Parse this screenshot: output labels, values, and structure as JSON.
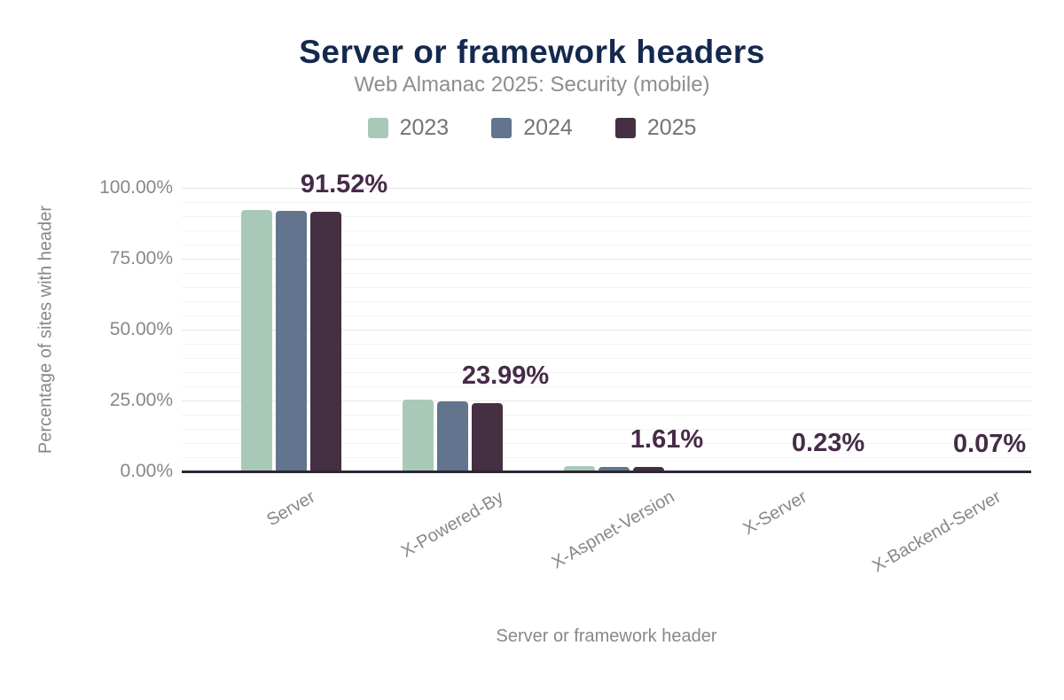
{
  "chart": {
    "title": "Server or framework headers",
    "subtitle": "Web Almanac 2025: Security (mobile)",
    "xlabel": "Server or framework header",
    "ylabel": "Percentage of sites with header"
  },
  "chart_data": {
    "type": "bar",
    "title": "Server or framework headers",
    "subtitle": "Web Almanac 2025: Security (mobile)",
    "xlabel": "Server or framework header",
    "ylabel": "Percentage of sites with header",
    "categories": [
      "Server",
      "X-Powered-By",
      "X-Aspnet-Version",
      "X-Server",
      "X-Backend-Server"
    ],
    "series": [
      {
        "name": "2023",
        "color": "#a9c9b8",
        "values": [
          92.3,
          25.2,
          1.9,
          0.3,
          0.1
        ]
      },
      {
        "name": "2024",
        "color": "#63748f",
        "values": [
          91.9,
          24.6,
          1.65,
          0.26,
          0.08
        ]
      },
      {
        "name": "2025",
        "color": "#452f42",
        "values": [
          91.52,
          23.99,
          1.61,
          0.23,
          0.07
        ]
      }
    ],
    "data_labels": [
      "91.52%",
      "23.99%",
      "1.61%",
      "0.23%",
      "0.07%"
    ],
    "data_labels_series": "2025",
    "ylim": [
      0,
      100
    ],
    "yticks": [
      {
        "value": 0,
        "label": "0.00%"
      },
      {
        "value": 25,
        "label": "25.00%"
      },
      {
        "value": 50,
        "label": "50.00%"
      },
      {
        "value": 75,
        "label": "75.00%"
      },
      {
        "value": 100,
        "label": "100.00%"
      }
    ],
    "minor_grid_step_percent": 5,
    "grid": true,
    "legend_position": "top"
  },
  "colors": {
    "title": "#14294e",
    "subtitle": "#8b8e91",
    "axis_text": "#85898c",
    "data_label": "#462b48",
    "axis_line": "#2b2733",
    "grid_minor": "#f3f3f3",
    "grid_major": "#e7e7e7",
    "background": "#ffffff"
  }
}
